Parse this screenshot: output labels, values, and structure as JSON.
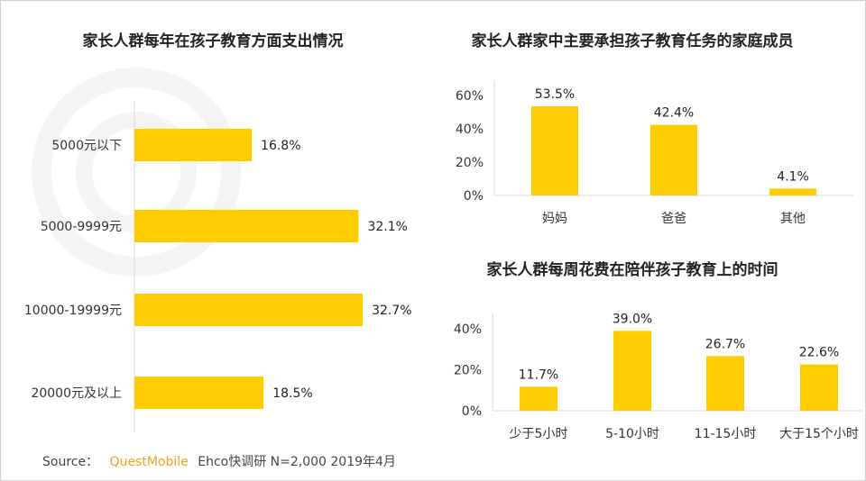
{
  "watermark": "QUESTMOBILE",
  "colors": {
    "bar": "#FFCC00",
    "brand": "#F7A11A",
    "axis": "#D9D9D9"
  },
  "chart_data": [
    {
      "type": "bar",
      "orientation": "horizontal",
      "title": "家长人群每年在孩子教育方面支出情况",
      "categories": [
        "5000元以下",
        "5000-9999元",
        "10000-19999元",
        "20000元及以上"
      ],
      "values": [
        16.8,
        32.1,
        32.7,
        18.5
      ],
      "data_labels": [
        "16.8%",
        "32.1%",
        "32.7%",
        "18.5%"
      ],
      "unit": "%",
      "grid": false
    },
    {
      "type": "bar",
      "title": "家长人群家中主要承担孩子教育任务的家庭成员",
      "categories": [
        "妈妈",
        "爸爸",
        "其他"
      ],
      "values": [
        53.5,
        42.4,
        4.1
      ],
      "data_labels": [
        "53.5%",
        "42.4%",
        "4.1%"
      ],
      "yticks": [
        "0%",
        "20%",
        "40%",
        "60%"
      ],
      "ylim": [
        0,
        60
      ],
      "grid": false
    },
    {
      "type": "bar",
      "title": "家长人群每周花费在陪伴孩子教育上的时间",
      "categories": [
        "少于5小时",
        "5-10小时",
        "11-15小时",
        "大于15个小时"
      ],
      "values": [
        11.7,
        39.0,
        26.7,
        22.6
      ],
      "data_labels": [
        "11.7%",
        "39.0%",
        "26.7%",
        "22.6%"
      ],
      "yticks": [
        "0%",
        "20%",
        "40%"
      ],
      "ylim": [
        0,
        40
      ],
      "grid": false
    }
  ],
  "source": {
    "label": "Source：",
    "brand": "QuestMobile",
    "text": "Ehco快调研 N=2,000 2019年4月"
  }
}
